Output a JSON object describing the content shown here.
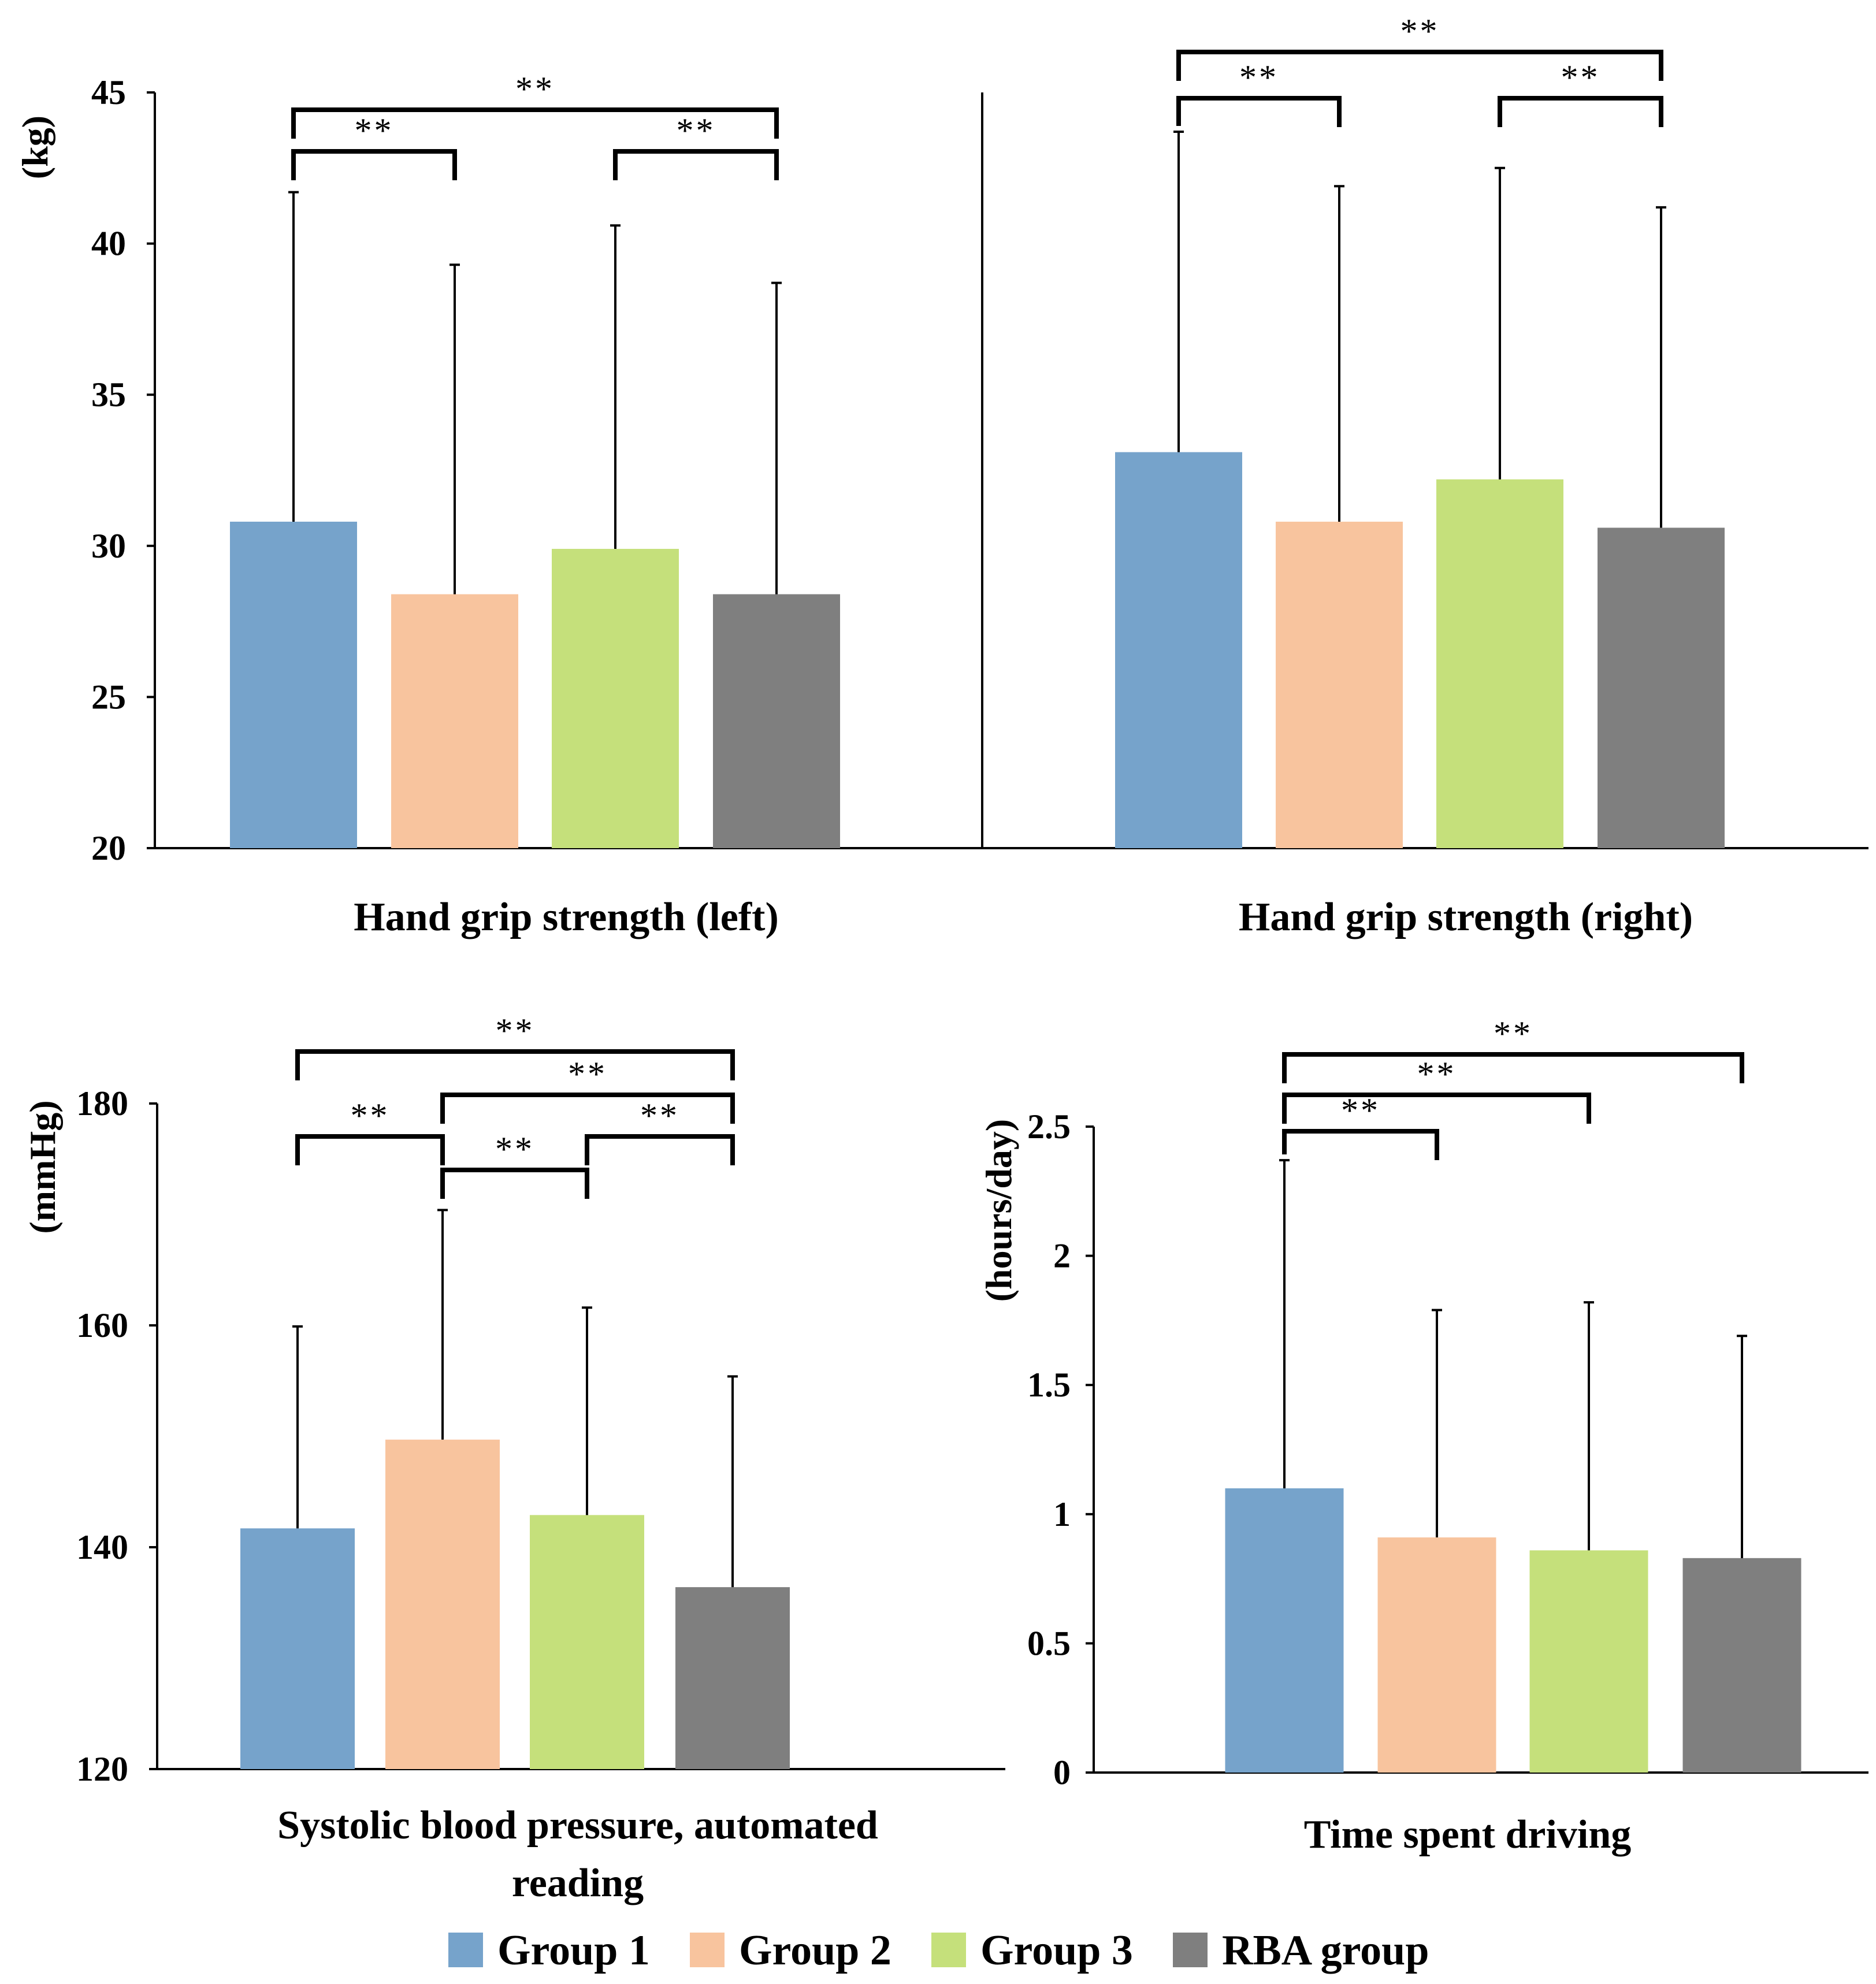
{
  "colors": {
    "group1": "#76A3CB",
    "group2": "#F8C49E",
    "group3": "#C5E07B",
    "rba": "#7F7F7F"
  },
  "legend": [
    {
      "label": "Group 1",
      "color": "#76A3CB"
    },
    {
      "label": "Group 2",
      "color": "#F8C49E"
    },
    {
      "label": "Group 3",
      "color": "#C5E07B"
    },
    {
      "label": "RBA group",
      "color": "#7F7F7F"
    }
  ],
  "chart_data": [
    {
      "type": "bar",
      "title": "Hand grip strength (left)",
      "ylabel": "(kg)",
      "ylim": [
        20,
        45
      ],
      "yticks": [
        20,
        25,
        30,
        35,
        40,
        45
      ],
      "categories": [
        "Group 1",
        "Group 2",
        "Group 3",
        "RBA group"
      ],
      "values": [
        30.8,
        28.4,
        29.9,
        28.4
      ],
      "error_upper": [
        41.7,
        39.3,
        40.6,
        38.7
      ],
      "significance": [
        {
          "from": 0,
          "to": 1,
          "label": "**"
        },
        {
          "from": 2,
          "to": 3,
          "label": "**"
        },
        {
          "from": 0,
          "to": 3,
          "label": "**"
        }
      ]
    },
    {
      "type": "bar",
      "title": "Hand grip strength (right)",
      "ylabel": "",
      "ylim": [
        20,
        45
      ],
      "yticks": [],
      "categories": [
        "Group 1",
        "Group 2",
        "Group 3",
        "RBA group"
      ],
      "values": [
        33.1,
        30.8,
        32.2,
        30.6
      ],
      "error_upper": [
        43.7,
        41.9,
        42.5,
        41.2
      ],
      "significance": [
        {
          "from": 0,
          "to": 1,
          "label": "**"
        },
        {
          "from": 2,
          "to": 3,
          "label": "**"
        },
        {
          "from": 0,
          "to": 3,
          "label": "**"
        }
      ]
    },
    {
      "type": "bar",
      "title": "Systolic blood pressure, automated reading",
      "title_lines": [
        "Systolic blood pressure, automated",
        "reading"
      ],
      "ylabel": "(mmHg)",
      "ylim": [
        120,
        180
      ],
      "yticks": [
        120,
        140,
        160,
        180
      ],
      "categories": [
        "Group 1",
        "Group 2",
        "Group 3",
        "RBA group"
      ],
      "values": [
        141.7,
        149.7,
        142.9,
        136.4
      ],
      "error_upper": [
        159.9,
        170.4,
        161.6,
        155.4
      ],
      "significance": [
        {
          "from": 0,
          "to": 1,
          "label": "**"
        },
        {
          "from": 1,
          "to": 2,
          "label": "**"
        },
        {
          "from": 2,
          "to": 3,
          "label": "**"
        },
        {
          "from": 1,
          "to": 3,
          "label": "**"
        },
        {
          "from": 0,
          "to": 3,
          "label": "**"
        }
      ]
    },
    {
      "type": "bar",
      "title": "Time spent driving",
      "ylabel": "(hours/day)",
      "ylim": [
        0,
        2.5
      ],
      "yticks": [
        "0",
        "0.5",
        "1",
        "1.5",
        "2",
        "2.5"
      ],
      "categories": [
        "Group 1",
        "Group 2",
        "Group 3",
        "RBA group"
      ],
      "values": [
        1.1,
        0.91,
        0.86,
        0.83
      ],
      "error_upper": [
        2.37,
        1.79,
        1.82,
        1.69
      ],
      "significance": [
        {
          "from": 0,
          "to": 1,
          "label": "**"
        },
        {
          "from": 0,
          "to": 2,
          "label": "**"
        },
        {
          "from": 0,
          "to": 3,
          "label": "**"
        }
      ]
    }
  ]
}
